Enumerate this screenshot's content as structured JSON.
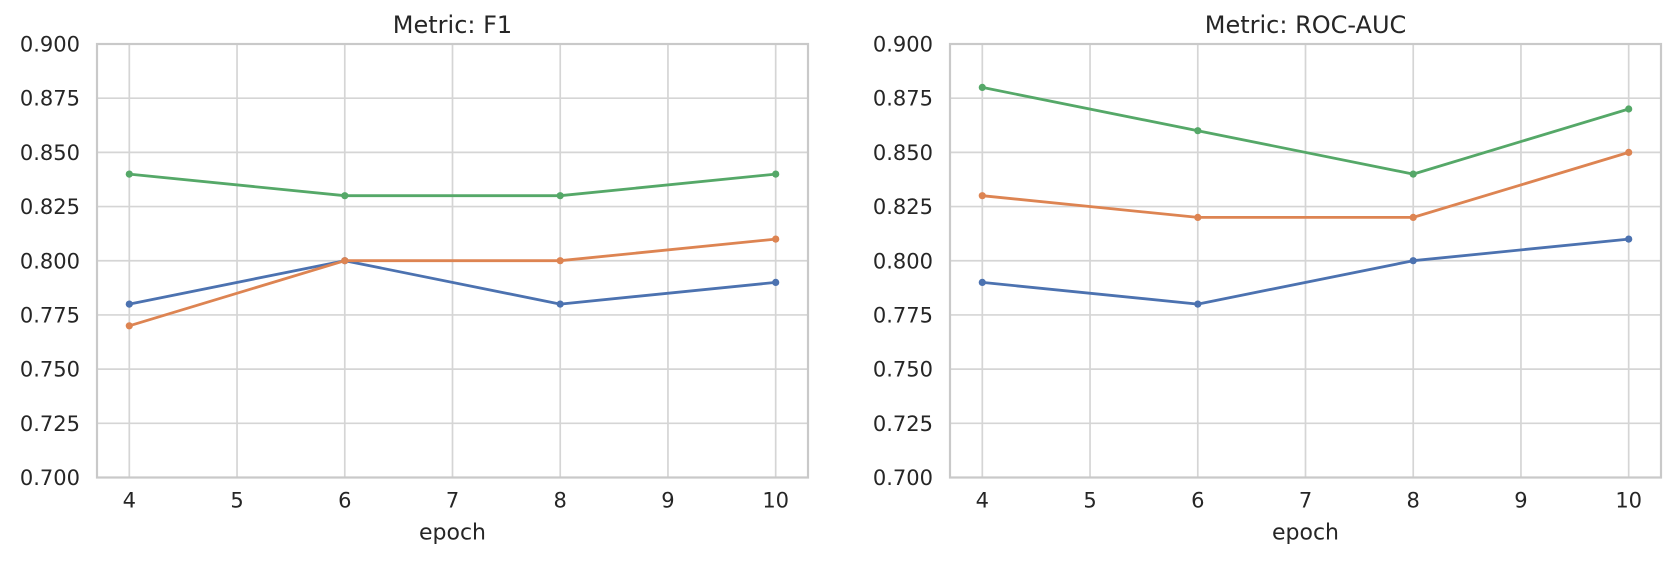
{
  "figure": {
    "background": "#ffffff",
    "text_color": "#262626",
    "grid_color": "#d5d5d5",
    "spine_color": "#c9c9c9"
  },
  "chart_data": [
    {
      "type": "line",
      "title": "Metric: F1",
      "xlabel": "epoch",
      "ylabel": "",
      "x": [
        4,
        6,
        8,
        10
      ],
      "xticks": [
        4,
        5,
        6,
        7,
        8,
        9,
        10
      ],
      "yticks": [
        "0.700",
        "0.725",
        "0.750",
        "0.775",
        "0.800",
        "0.825",
        "0.850",
        "0.875",
        "0.900"
      ],
      "xlim": [
        3.7,
        10.3
      ],
      "ylim": [
        0.7,
        0.9
      ],
      "grid": true,
      "legend": false,
      "marker": "circle",
      "series": [
        {
          "name": "blue",
          "color": "#4C72B0",
          "values": [
            0.78,
            0.8,
            0.78,
            0.79
          ]
        },
        {
          "name": "orange",
          "color": "#DD8452",
          "values": [
            0.77,
            0.8,
            0.8,
            0.81
          ]
        },
        {
          "name": "green",
          "color": "#55A868",
          "values": [
            0.84,
            0.83,
            0.83,
            0.84
          ]
        }
      ]
    },
    {
      "type": "line",
      "title": "Metric: ROC-AUC",
      "xlabel": "epoch",
      "ylabel": "",
      "x": [
        4,
        6,
        8,
        10
      ],
      "xticks": [
        4,
        5,
        6,
        7,
        8,
        9,
        10
      ],
      "yticks": [
        "0.700",
        "0.725",
        "0.750",
        "0.775",
        "0.800",
        "0.825",
        "0.850",
        "0.875",
        "0.900"
      ],
      "xlim": [
        3.7,
        10.3
      ],
      "ylim": [
        0.7,
        0.9
      ],
      "grid": true,
      "legend": false,
      "marker": "circle",
      "series": [
        {
          "name": "blue",
          "color": "#4C72B0",
          "values": [
            0.79,
            0.78,
            0.8,
            0.81
          ]
        },
        {
          "name": "orange",
          "color": "#DD8452",
          "values": [
            0.83,
            0.82,
            0.82,
            0.85
          ]
        },
        {
          "name": "green",
          "color": "#55A868",
          "values": [
            0.88,
            0.86,
            0.84,
            0.87
          ]
        }
      ]
    }
  ]
}
